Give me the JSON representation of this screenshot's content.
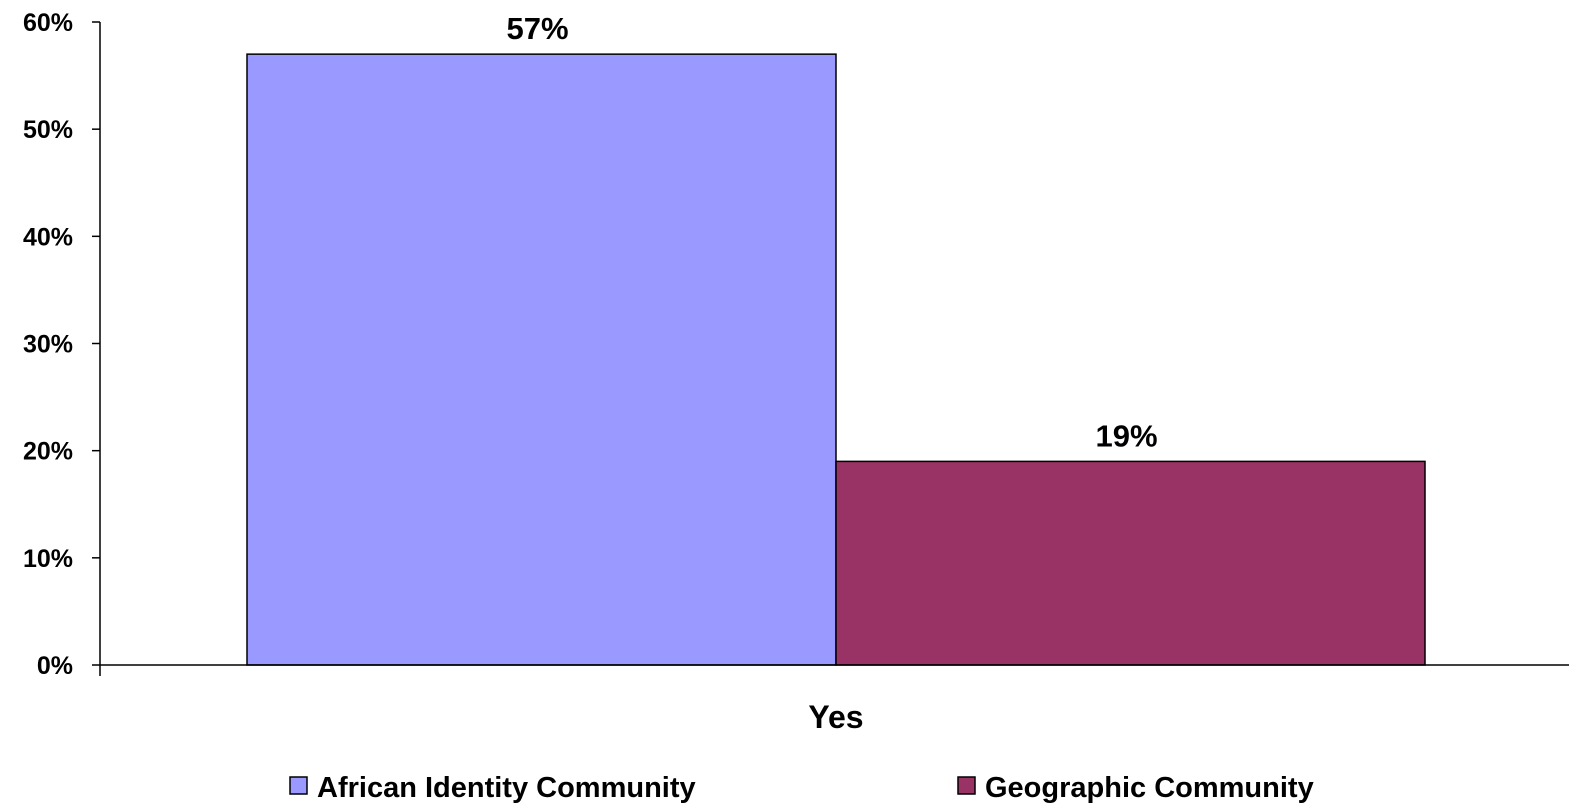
{
  "chart_data": {
    "type": "bar",
    "categories": [
      "Yes"
    ],
    "series": [
      {
        "name": "African Identity Community",
        "values": [
          57
        ],
        "color": "#9999FF"
      },
      {
        "name": "Geographic Community",
        "values": [
          19
        ],
        "color": "#993366"
      }
    ],
    "data_labels": [
      "57%",
      "19%"
    ],
    "y_ticks": [
      {
        "value": 0,
        "label": "0%"
      },
      {
        "value": 10,
        "label": "10%"
      },
      {
        "value": 20,
        "label": "20%"
      },
      {
        "value": 30,
        "label": "30%"
      },
      {
        "value": 40,
        "label": "40%"
      },
      {
        "value": 50,
        "label": "50%"
      },
      {
        "value": 60,
        "label": "60%"
      }
    ],
    "ylim": [
      0,
      60
    ],
    "grid": false,
    "legend_position": "bottom",
    "title": "",
    "xlabel": "",
    "ylabel": ""
  }
}
